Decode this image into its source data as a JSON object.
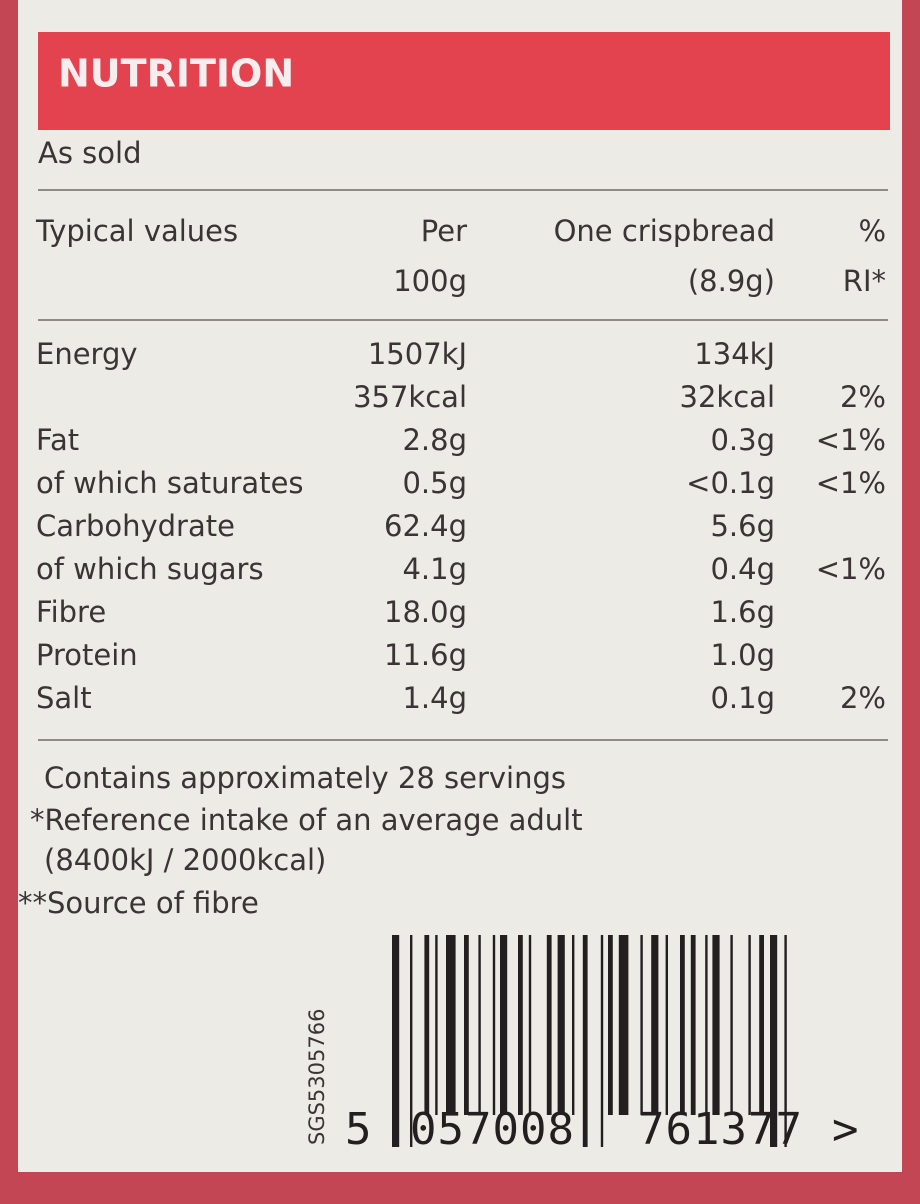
{
  "header": {
    "title": "NUTRITION",
    "subtitle": "As sold"
  },
  "table": {
    "header": [
      [
        "Typical values",
        null
      ],
      [
        "Per",
        "100g"
      ],
      [
        "One crispbread",
        "(8.9g)"
      ],
      [
        "%",
        "RI*"
      ]
    ],
    "rows": [
      [
        "Energy",
        "1507kJ",
        "134kJ",
        null
      ],
      [
        null,
        "357kcal",
        "32kcal",
        "2%"
      ],
      [
        "Fat",
        "2.8g",
        "0.3g",
        "<1%"
      ],
      [
        "of which saturates",
        "0.5g",
        "<0.1g",
        "<1%"
      ],
      [
        "Carbohydrate",
        "62.4g",
        "5.6g",
        null
      ],
      [
        "of which sugars",
        "4.1g",
        "0.4g",
        "<1%"
      ],
      [
        "Fibre",
        "18.0g",
        "1.6g",
        null
      ],
      [
        "Protein",
        "11.6g",
        "1.0g",
        null
      ],
      [
        "Salt",
        "1.4g",
        "0.1g",
        "2%"
      ]
    ]
  },
  "footnotes": [
    "Contains approximately 28 servings",
    "*Reference intake of an average adult",
    "(8400kJ / 2000kcal)",
    "**Source of fibre"
  ],
  "barcode": {
    "code": "SGS5305766",
    "digits": [
      "5",
      "057008",
      "761377",
      ">"
    ]
  }
}
